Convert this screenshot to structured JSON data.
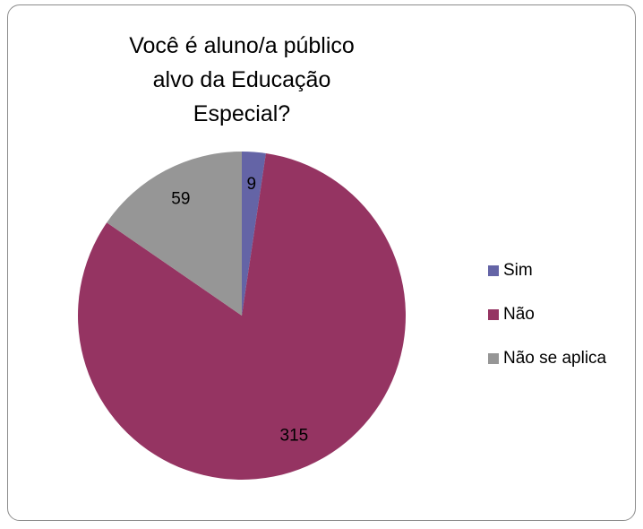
{
  "chart_data": {
    "type": "pie",
    "title": "Você é aluno/a público alvo da Educação Especial?",
    "categories": [
      "Sim",
      "Não",
      "Não se aplica"
    ],
    "values": [
      9,
      315,
      59
    ],
    "colors": [
      "#6464a6",
      "#953462",
      "#969696"
    ],
    "legend": "right"
  }
}
